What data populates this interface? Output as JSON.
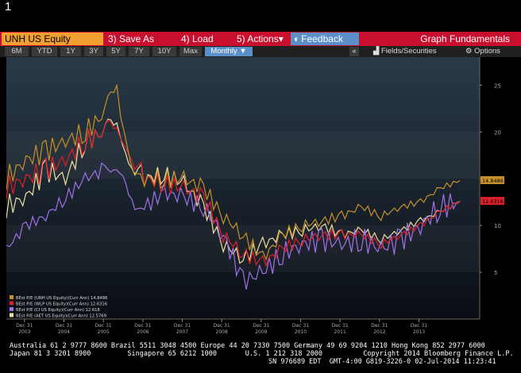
{
  "page_number": "1",
  "toolbar": {
    "ticker": "UNH US Equity",
    "save_as": "3) Save As",
    "load": "4) Load",
    "actions": "5) Actions",
    "feedback": "Feedback",
    "graph_fundamentals": "Graph Fundamentals"
  },
  "ranges": [
    "6M",
    "YTD",
    "1Y",
    "3Y",
    "5Y",
    "7Y",
    "10Y",
    "Max"
  ],
  "period": "Monthly",
  "fields_label": "Fields/Securities",
  "options_label": "Options",
  "colors": {
    "unh": "#c7902a",
    "wlp": "#e0202a",
    "ci": "#a070e8",
    "aet": "#f0e0a0"
  },
  "chart_data": {
    "type": "line",
    "title": "",
    "ylim": [
      0,
      28
    ],
    "yticks": [
      "5",
      "10",
      "15",
      "20",
      "25"
    ],
    "xticks": [
      "Dec 31\n2003",
      "Dec 31\n2004",
      "Dec 31\n2005",
      "Dec 31\n2006",
      "Dec 31\n2007",
      "Dec 31\n2008",
      "Dec 31\n2009",
      "Dec 31\n2010",
      "Dec 31\n2011",
      "Dec 31\n2012",
      "Dec 31\n2013"
    ],
    "legend": [
      "BEst P/E (UNH US Equity)(Curr Ann)  14.8486",
      "BEst P/E (WLP US Equity)(Curr Ann)  12.6316",
      "BEst P/E (CI US Equity)(Curr Ann)  12.618",
      "BEst P/E (AET US Equity)(Curr Ann)  12.5769"
    ],
    "last_value_labels": [
      "14.8486",
      "12.6316"
    ],
    "x_start": 2002.5,
    "x_end": 2014.5,
    "series": [
      {
        "name": "UNH",
        "color": "#c7902a",
        "values": [
          [
            2002.5,
            15
          ],
          [
            2003,
            17
          ],
          [
            2003.5,
            18
          ],
          [
            2004,
            19
          ],
          [
            2004.5,
            20
          ],
          [
            2005,
            22
          ],
          [
            2005.3,
            25
          ],
          [
            2005.5,
            19
          ],
          [
            2005.8,
            16
          ],
          [
            2006,
            15
          ],
          [
            2006.5,
            15
          ],
          [
            2007,
            15
          ],
          [
            2007.5,
            14
          ],
          [
            2008,
            11
          ],
          [
            2008.5,
            9
          ],
          [
            2009,
            6.5
          ],
          [
            2009.5,
            9
          ],
          [
            2010,
            10
          ],
          [
            2010.5,
            10.5
          ],
          [
            2011,
            11
          ],
          [
            2011.5,
            12
          ],
          [
            2012,
            11
          ],
          [
            2012.5,
            12
          ],
          [
            2013,
            12.5
          ],
          [
            2013.5,
            14
          ],
          [
            2014,
            14.8
          ]
        ]
      },
      {
        "name": "WLP",
        "color": "#e0202a",
        "values": [
          [
            2002.5,
            14
          ],
          [
            2003,
            15
          ],
          [
            2003.5,
            16
          ],
          [
            2004,
            17
          ],
          [
            2004.5,
            19
          ],
          [
            2005,
            20
          ],
          [
            2005.3,
            20.5
          ],
          [
            2005.6,
            18
          ],
          [
            2006,
            15
          ],
          [
            2006.5,
            14.5
          ],
          [
            2007,
            14
          ],
          [
            2007.5,
            13
          ],
          [
            2008,
            9
          ],
          [
            2008.5,
            7
          ],
          [
            2009,
            6
          ],
          [
            2009.5,
            7.5
          ],
          [
            2010,
            8.5
          ],
          [
            2010.5,
            9
          ],
          [
            2011,
            9
          ],
          [
            2011.5,
            9
          ],
          [
            2012,
            8
          ],
          [
            2012.5,
            9
          ],
          [
            2013,
            10
          ],
          [
            2013.5,
            11.5
          ],
          [
            2014,
            12.6
          ]
        ]
      },
      {
        "name": "CI",
        "color": "#a070e8",
        "values": [
          [
            2002.5,
            7.5
          ],
          [
            2003,
            10
          ],
          [
            2003.5,
            11
          ],
          [
            2004,
            13
          ],
          [
            2004.5,
            15
          ],
          [
            2005,
            16
          ],
          [
            2005.3,
            17
          ],
          [
            2005.6,
            12
          ],
          [
            2006,
            12
          ],
          [
            2006.5,
            13.5
          ],
          [
            2007,
            13
          ],
          [
            2007.5,
            12
          ],
          [
            2008,
            9
          ],
          [
            2008.5,
            4
          ],
          [
            2009,
            5
          ],
          [
            2009.5,
            7
          ],
          [
            2010,
            8
          ],
          [
            2010.5,
            8.5
          ],
          [
            2011,
            8
          ],
          [
            2011.5,
            8.5
          ],
          [
            2012,
            7.5
          ],
          [
            2012.5,
            8.5
          ],
          [
            2013,
            10
          ],
          [
            2013.5,
            12
          ],
          [
            2014,
            12.6
          ]
        ]
      },
      {
        "name": "AET",
        "color": "#f0e0a0",
        "values": [
          [
            2002.5,
            12
          ],
          [
            2003,
            13
          ],
          [
            2003.5,
            16
          ],
          [
            2004,
            15
          ],
          [
            2004.5,
            19
          ],
          [
            2005,
            20
          ],
          [
            2005.3,
            21
          ],
          [
            2005.6,
            17
          ],
          [
            2006,
            15
          ],
          [
            2006.5,
            15.5
          ],
          [
            2007,
            14.5
          ],
          [
            2007.5,
            12
          ],
          [
            2008,
            8
          ],
          [
            2008.5,
            6.5
          ],
          [
            2009,
            8
          ],
          [
            2009.5,
            9
          ],
          [
            2010,
            9.5
          ],
          [
            2010.5,
            10
          ],
          [
            2011,
            9
          ],
          [
            2011.5,
            9.5
          ],
          [
            2012,
            8.5
          ],
          [
            2012.5,
            9.5
          ],
          [
            2013,
            10.5
          ],
          [
            2013.5,
            11.5
          ],
          [
            2014,
            12.58
          ]
        ]
      }
    ]
  },
  "footer": {
    "line1": "Australia 61 2 9777 8600 Brazil 5511 3048 4500 Europe 44 20 7330 7500 Germany 49 69 9204 1210 Hong Kong 852 2977 6000",
    "line2": "Japan 81 3 3201 8900         Singapore 65 6212 1000       U.S. 1 212 318 2000          Copyright 2014 Bloomberg Finance L.P.",
    "line3": "SN 976689 EDT  GMT-4:00 G819-3226-0 02-Jul-2014 11:23:41"
  }
}
